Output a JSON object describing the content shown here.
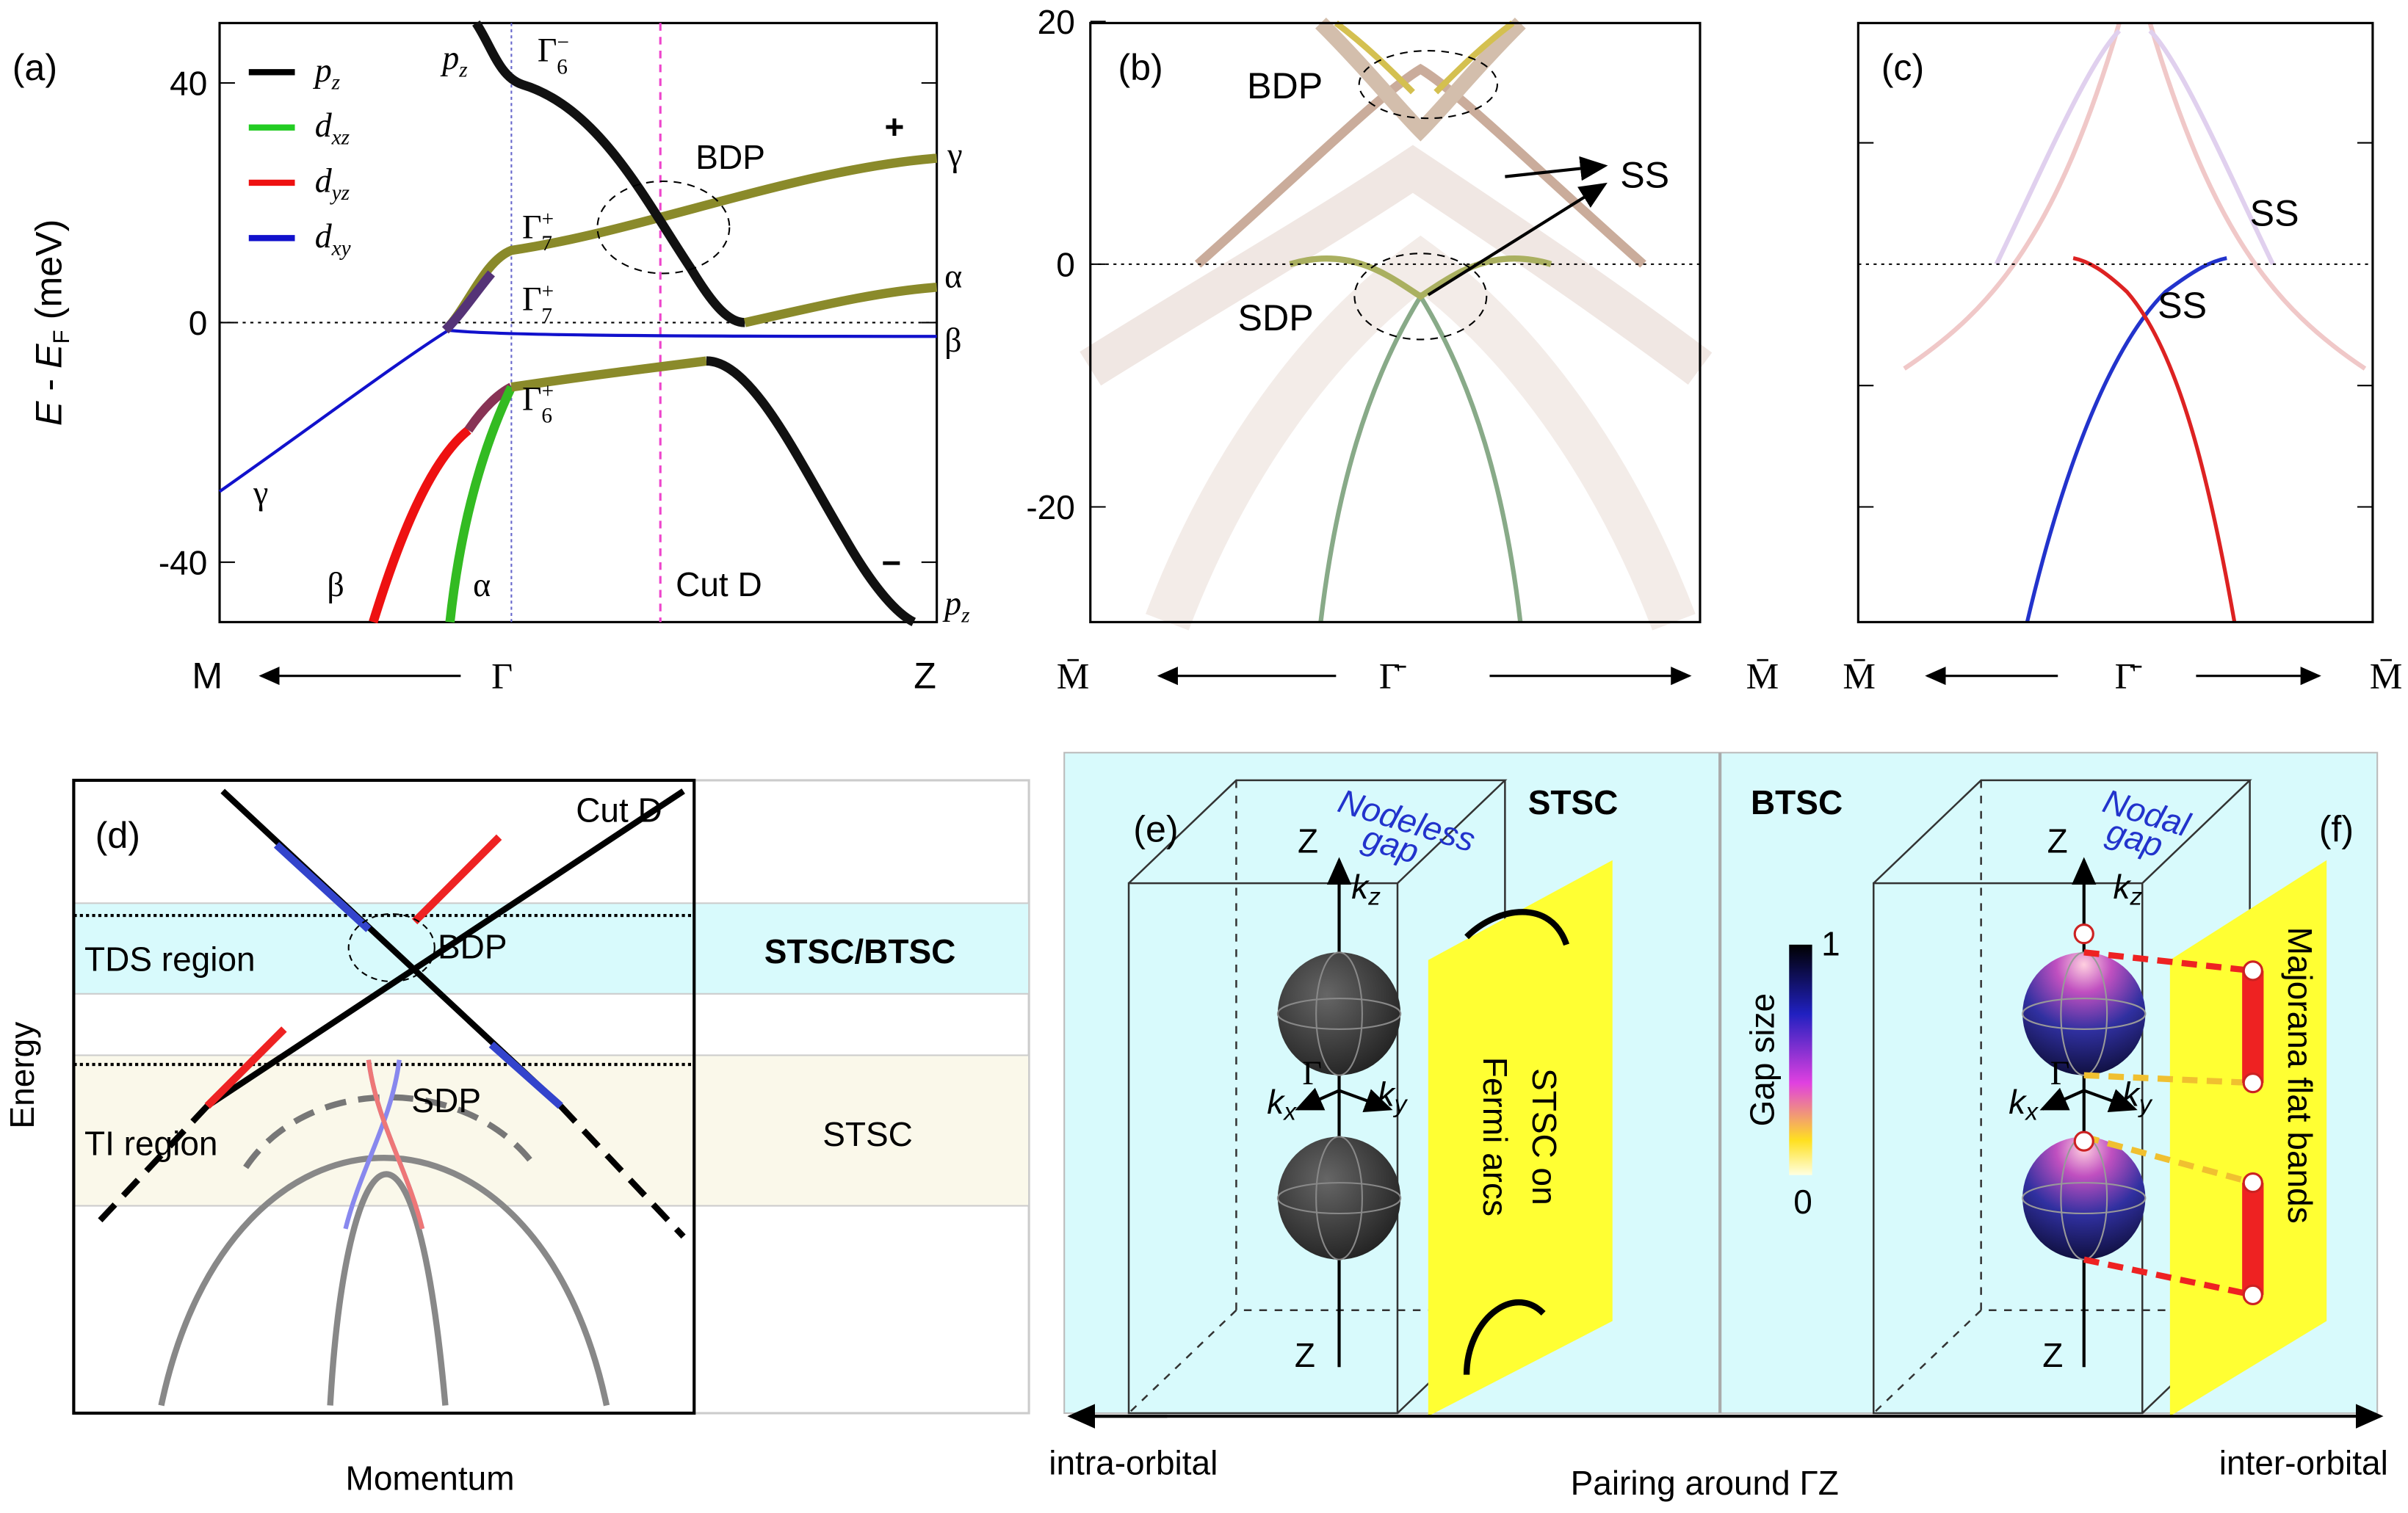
{
  "panel_a": {
    "label": "(a)",
    "y_label": [
      "E",
      " - ",
      "E",
      "F",
      " (meV)"
    ],
    "yticks": [
      40,
      0,
      -40
    ],
    "legend": [
      {
        "base": "p",
        "sub": "z",
        "color": "#000000"
      },
      {
        "base": "d",
        "sub": "xz",
        "color": "#22cc22"
      },
      {
        "base": "d",
        "sub": "yz",
        "color": "#ee1111"
      },
      {
        "base": "d",
        "sub": "xy",
        "color": "#1111cc"
      }
    ],
    "gamma_labels": [
      {
        "base": "Γ",
        "sub": "6",
        "sup": "−"
      },
      {
        "base": "Γ",
        "sub": "7",
        "sup": "+"
      },
      {
        "base": "Γ",
        "sub": "7",
        "sup": "+"
      },
      {
        "base": "Γ",
        "sub": "6",
        "sup": "+"
      }
    ],
    "band_labels": {
      "pz_top": [
        "p",
        "z"
      ],
      "pz_bottom": [
        "p",
        "z"
      ],
      "gamma_right": "γ",
      "alpha_right": "α",
      "beta_right": "β",
      "gamma_left": "γ",
      "beta_left": "β",
      "alpha_left": "α"
    },
    "bdp": "BDP",
    "plus": "+",
    "minus": "−",
    "cut": "Cut D",
    "x_labels": [
      "M",
      "Γ",
      "Z"
    ]
  },
  "panel_b": {
    "label": "(b)",
    "yticks": [
      20,
      0,
      -20
    ],
    "bdp": "BDP",
    "sdp": "SDP",
    "ss": "SS",
    "x_labels": [
      "M̄",
      "Γ̄",
      "M̄"
    ]
  },
  "panel_c": {
    "label": "(c)",
    "ss_top": "SS",
    "ss_mid": "SS",
    "x_labels": [
      "M̄",
      "Γ̄",
      "M̄"
    ]
  },
  "panel_d": {
    "label": "(d)",
    "cut": "Cut D",
    "tds": "TDS region",
    "bdp": "BDP",
    "stsc_btsc": "STSC/BTSC",
    "ti": "TI region",
    "sdp": "SDP",
    "stsc": "STSC",
    "y_label": "Energy",
    "x_label": "Momentum"
  },
  "panel_ef": {
    "label_e": "(e)",
    "label_f": "(f)",
    "stsc": "STSC",
    "btsc": "BTSC",
    "nodeless": [
      "Nodeless",
      "gap"
    ],
    "nodal": [
      "Nodal",
      "gap"
    ],
    "axes_e": {
      "z_top": "Z",
      "kz": [
        "k",
        "z"
      ],
      "gamma": "Γ",
      "kx": [
        "k",
        "x"
      ],
      "ky": [
        "k",
        "y"
      ],
      "z_bottom": "Z"
    },
    "axes_f": {
      "z_top": "Z",
      "kz": [
        "k",
        "z"
      ],
      "gamma": "Γ",
      "kx": [
        "k",
        "x"
      ],
      "ky": [
        "k",
        "y"
      ],
      "z_bottom": "Z"
    },
    "fermi_arcs": [
      "STSC on",
      "Fermi arcs"
    ],
    "majorana": "Majorana flat bands",
    "colorbar": {
      "title": "Gap size",
      "max": "1",
      "min": "0"
    },
    "intra": "intra-orbital",
    "pairing": "Pairing around ΓZ",
    "inter": "inter-orbital"
  }
}
